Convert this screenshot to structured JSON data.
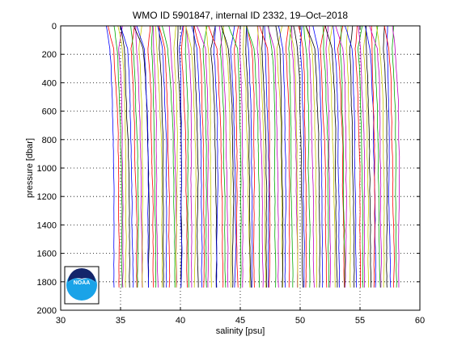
{
  "chart_data": {
    "type": "line",
    "title": "WMO ID 5901847, internal ID 2332, 19–Oct–2018",
    "xlabel": "salinity [psu]",
    "ylabel": "pressure [dbar]",
    "xlim": [
      30,
      60
    ],
    "ylim": [
      0,
      2000
    ],
    "y_reversed": true,
    "x_ticks": [
      "30",
      "35",
      "40",
      "45",
      "50",
      "55",
      "60"
    ],
    "y_ticks": [
      "0",
      "200",
      "400",
      "600",
      "800",
      "1000",
      "1200",
      "1400",
      "1600",
      "1800",
      "2000"
    ],
    "grid": "dotted",
    "legend": "none",
    "offset_profiles": {
      "count": 100,
      "first_surface_salinity": 34.0,
      "salinity_offset_step": 0.24,
      "max_pressure": 1840,
      "colors": [
        "#0000ff",
        "#ff0000",
        "#00aa00",
        "#c000c0",
        "#c8c800",
        "#000000"
      ]
    }
  },
  "logo": {
    "text": "NOAA"
  }
}
